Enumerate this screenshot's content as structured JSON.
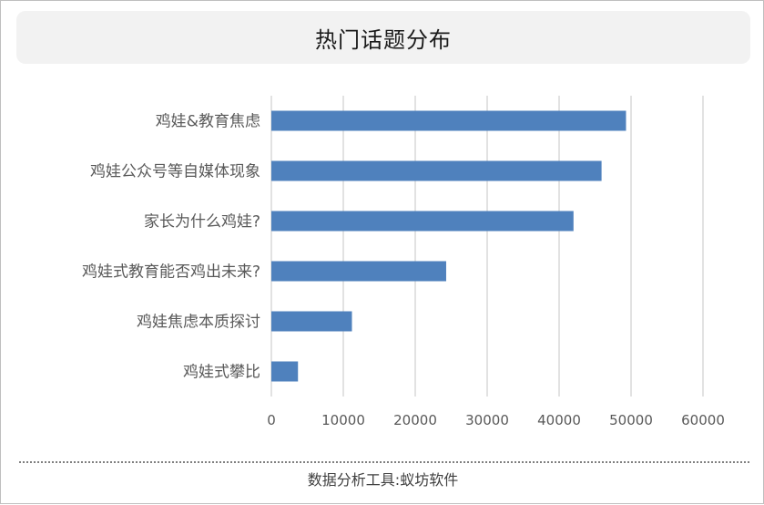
{
  "chart_data": {
    "type": "bar",
    "orientation": "horizontal",
    "title": "热门话题分布",
    "categories": [
      "鸡娃&教育焦虑",
      "鸡娃公众号等自媒体现象",
      "家长为什么鸡娃?",
      "鸡娃式教育能否鸡出未来?",
      "鸡娃焦虑本质探讨",
      "鸡娃式攀比"
    ],
    "values": [
      49300,
      45900,
      42000,
      24300,
      11200,
      3700
    ],
    "xlim": [
      0,
      60000
    ],
    "xticks": [
      0,
      10000,
      20000,
      30000,
      40000,
      50000,
      60000
    ],
    "xtick_labels": [
      "0",
      "10000",
      "20000",
      "30000",
      "40000",
      "50000",
      "60000"
    ],
    "grid": true,
    "bar_color": "#4f81bd"
  },
  "footer": {
    "text": "数据分析工具:蚁坊软件"
  }
}
